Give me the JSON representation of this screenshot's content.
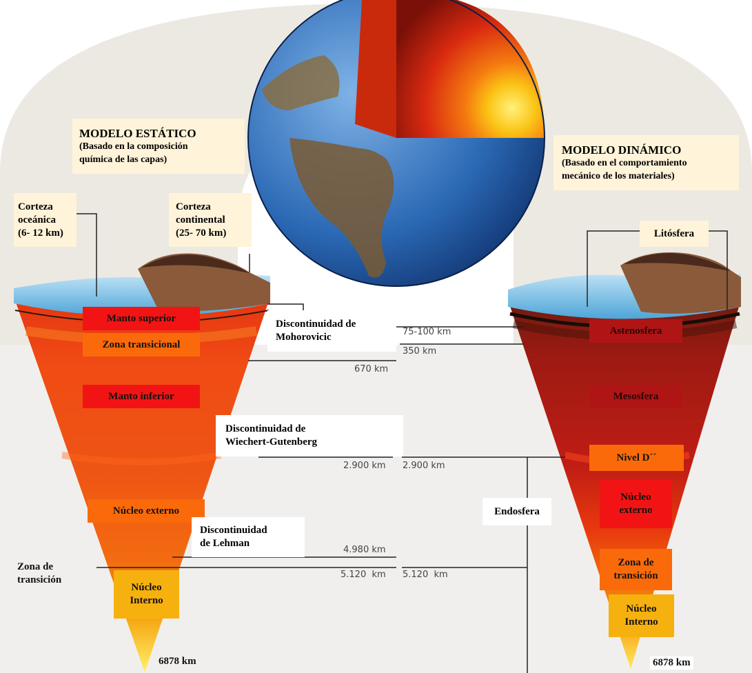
{
  "static_model": {
    "title": "MODELO ESTÁTICO",
    "subtitle_1": "(Basado en la composición",
    "subtitle_2": "química de las capas)",
    "crust_oceanic": [
      "Corteza",
      "oceánica",
      "(6- 12 km)"
    ],
    "crust_continental": [
      "Corteza",
      "continental",
      "(25- 70 km)"
    ],
    "layers": {
      "upper_mantle": "Manto superior",
      "transition_zone": "Zona transicional",
      "lower_mantle": "Manto inferior",
      "outer_core": "Núcleo externo",
      "inner_core": [
        "Núcleo",
        "Interno"
      ]
    },
    "transition_zone_label": [
      "Zona de",
      "transición"
    ],
    "bottom_depth": "6878 km"
  },
  "dynamic_model": {
    "title": "MODELO DINÁMICO",
    "subtitle_1": "(Basado en el comportamiento",
    "subtitle_2": "mecánico de los materiales)",
    "layers": {
      "lithosphere": "Litósfera",
      "asthenosphere": "Astenosfera",
      "mesosphere": "Mesosfera",
      "level_d": "Nivel D´´",
      "outer_core": [
        "Núcleo",
        "externo"
      ],
      "transition_zone": [
        "Zona de",
        "transición"
      ],
      "inner_core": [
        "Núcleo",
        "Interno"
      ]
    },
    "endosphere": "Endosfera",
    "bottom_depth": "6878 km"
  },
  "discontinuities": {
    "mohorovicic": [
      "Discontinuidad de",
      "Mohorovicic"
    ],
    "wiechert": [
      "Discontinuidad de",
      "Wiechert-Gutenberg"
    ],
    "lehman": [
      "Discontinuidad",
      "de Lehman"
    ]
  },
  "depths": {
    "d75_100": "75-100 km",
    "d350": "350 km",
    "d670": "670 km",
    "d2900_left": "2.900 km",
    "d2900_right": "2.900 km",
    "d4980": "4.980 km",
    "d5120_left": "5.120  km",
    "d5120_right": "5.120  km"
  },
  "colors": {
    "red_box": "#f21414",
    "orange_box": "#fb6a0a",
    "gold_box": "#f7b10f",
    "cream_box": "#fff3d9",
    "dark_box": "#b01515"
  }
}
